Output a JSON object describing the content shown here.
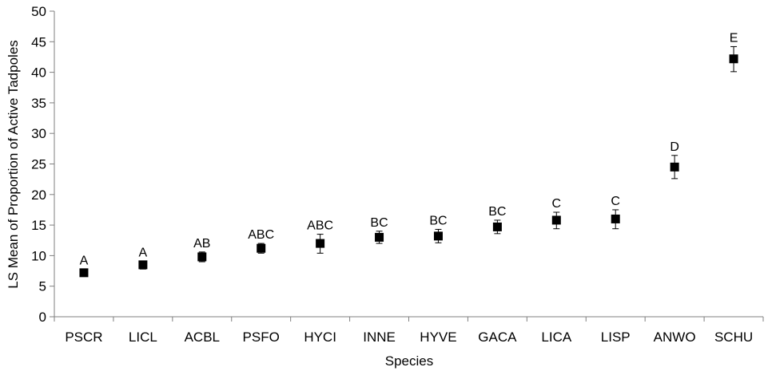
{
  "chart_data": {
    "type": "scatter",
    "categories": [
      "PSCR",
      "LICL",
      "ACBL",
      "PSFO",
      "HYCI",
      "INNE",
      "HYVE",
      "GACA",
      "LICA",
      "LISP",
      "ANWO",
      "SCHU"
    ],
    "values": [
      7.2,
      8.5,
      9.8,
      11.2,
      12.0,
      13.0,
      13.2,
      14.7,
      15.8,
      16.0,
      24.5,
      42.2
    ],
    "error_low": [
      6.6,
      7.8,
      9.0,
      10.4,
      10.4,
      12.0,
      12.1,
      13.6,
      14.4,
      14.4,
      22.6,
      40.1
    ],
    "error_high": [
      7.8,
      9.1,
      10.6,
      12.0,
      13.5,
      14.0,
      14.3,
      15.8,
      17.1,
      17.5,
      26.4,
      44.2
    ],
    "group_labels": [
      "A",
      "A",
      "AB",
      "ABC",
      "ABC",
      "BC",
      "BC",
      "BC",
      "C",
      "C",
      "D",
      "E"
    ],
    "xlabel": "Species",
    "ylabel": "LS Mean of Proportion of Active Tadpoles",
    "ylim": [
      0,
      50
    ],
    "yticks": [
      0,
      5,
      10,
      15,
      20,
      25,
      30,
      35,
      40,
      45,
      50
    ],
    "marker": "square",
    "color": "#000000",
    "grid": false
  }
}
